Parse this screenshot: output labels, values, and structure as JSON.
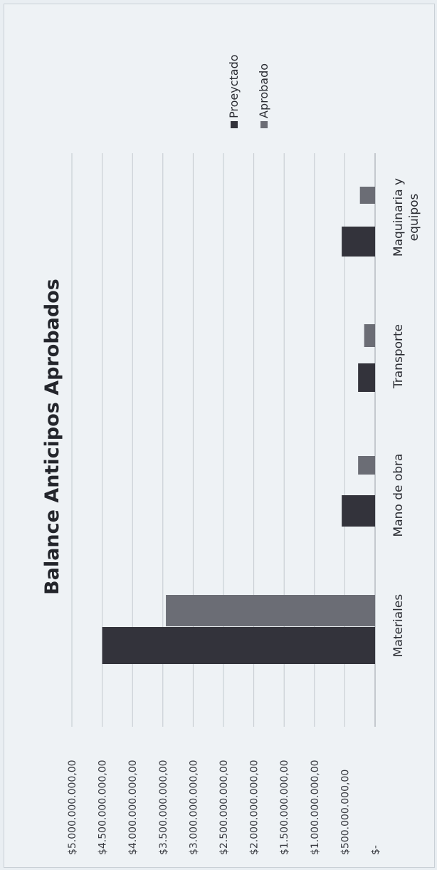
{
  "chart_data": {
    "type": "bar",
    "orientation": "rotated-90-ccw",
    "title": "Balance Anticipos Aprobados",
    "categories": [
      "Materiales",
      "Mano de obra",
      "Transporte",
      [
        "Maquinaria y",
        "equipos"
      ]
    ],
    "series": [
      {
        "name": "Proeyctado",
        "color": "#33333b",
        "values": [
          4500000000,
          550000000,
          280000000,
          550000000
        ]
      },
      {
        "name": "Aprobado",
        "color": "#6b6d75",
        "values": [
          3450000000,
          280000000,
          180000000,
          250000000
        ]
      }
    ],
    "y_tick_labels": [
      "$-",
      "$500.000.000,00",
      "$1.000.000.000,00",
      "$1.500.000.000,00",
      "$2.000.000.000,00",
      "$2.500.000.000,00",
      "$3.000.000.000,00",
      "$3.500.000.000,00",
      "$4.000.000.000,00",
      "$4.500.000.000,00",
      "$5.000.000.000,00"
    ],
    "ylim": [
      0,
      5000000000
    ],
    "grid": true,
    "legend_position": "right"
  }
}
